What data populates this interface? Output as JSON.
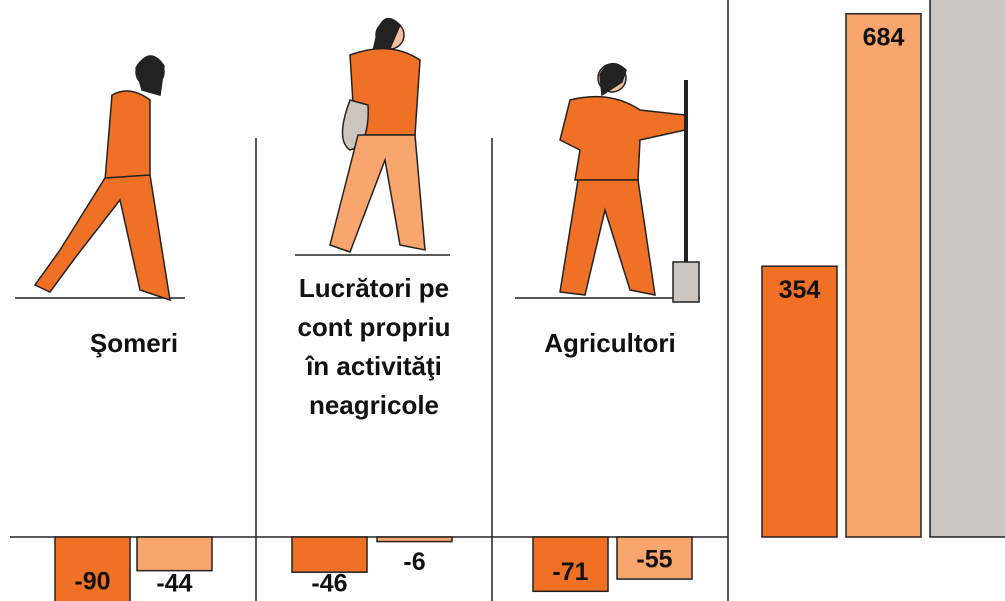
{
  "chart_data": {
    "type": "bar",
    "categories": [
      "Şomeri",
      "Lucrători pe cont propriu în activităţi neagricole",
      "Agricultori",
      null
    ],
    "series": [
      {
        "color": "#f07025",
        "values": [
          -90,
          -46,
          -71,
          354
        ]
      },
      {
        "color": "#f8a56e",
        "values": [
          -44,
          -6,
          -55,
          684
        ]
      }
    ]
  }
}
